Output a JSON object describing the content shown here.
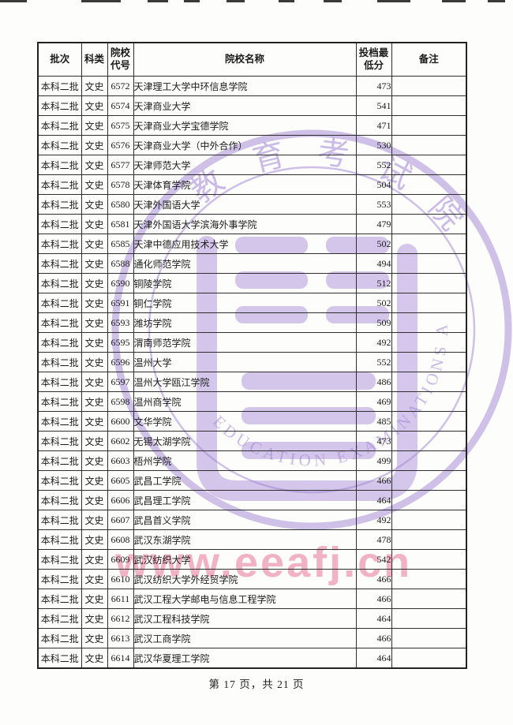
{
  "page": {
    "footer": "第 17 页，共 21 页"
  },
  "watermark": {
    "seal_top_chars": [
      "教",
      "育",
      "考",
      "试",
      "院"
    ],
    "seal_bottom_text": "EDUCATION EXAMINATIONS AUTHORITY",
    "url_text": "www.eeafj.cn",
    "seal_color": "#a184d6",
    "url_color": "#ee9ab5"
  },
  "table": {
    "headers": [
      "批次",
      "科类",
      "院校\n代号",
      "院校名称",
      "投档最\n低分",
      "备注"
    ],
    "column_names": [
      "batch",
      "subject-category",
      "college-code",
      "college-name",
      "min-admission-score",
      "remarks"
    ],
    "rows": [
      [
        "本科二批",
        "文史",
        "6572",
        "天津理工大学中环信息学院",
        "473",
        ""
      ],
      [
        "本科二批",
        "文史",
        "6574",
        "天津商业大学",
        "541",
        ""
      ],
      [
        "本科二批",
        "文史",
        "6575",
        "天津商业大学宝德学院",
        "471",
        ""
      ],
      [
        "本科二批",
        "文史",
        "6576",
        "天津商业大学（中外合作）",
        "530",
        ""
      ],
      [
        "本科二批",
        "文史",
        "6577",
        "天津师范大学",
        "552",
        ""
      ],
      [
        "本科二批",
        "文史",
        "6578",
        "天津体育学院",
        "504",
        ""
      ],
      [
        "本科二批",
        "文史",
        "6580",
        "天津外国语大学",
        "553",
        ""
      ],
      [
        "本科二批",
        "文史",
        "6581",
        "天津外国语大学滨海外事学院",
        "479",
        ""
      ],
      [
        "本科二批",
        "文史",
        "6585",
        "天津中德应用技术大学",
        "502",
        ""
      ],
      [
        "本科二批",
        "文史",
        "6588",
        "通化师范学院",
        "494",
        ""
      ],
      [
        "本科二批",
        "文史",
        "6590",
        "铜陵学院",
        "512",
        ""
      ],
      [
        "本科二批",
        "文史",
        "6591",
        "铜仁学院",
        "502",
        ""
      ],
      [
        "本科二批",
        "文史",
        "6593",
        "潍坊学院",
        "509",
        ""
      ],
      [
        "本科二批",
        "文史",
        "6595",
        "渭南师范学院",
        "492",
        ""
      ],
      [
        "本科二批",
        "文史",
        "6596",
        "温州大学",
        "552",
        ""
      ],
      [
        "本科二批",
        "文史",
        "6597",
        "温州大学瓯江学院",
        "486",
        ""
      ],
      [
        "本科二批",
        "文史",
        "6598",
        "温州商学院",
        "469",
        ""
      ],
      [
        "本科二批",
        "文史",
        "6600",
        "文华学院",
        "485",
        ""
      ],
      [
        "本科二批",
        "文史",
        "6602",
        "无锡太湖学院",
        "473",
        ""
      ],
      [
        "本科二批",
        "文史",
        "6603",
        "梧州学院",
        "499",
        ""
      ],
      [
        "本科二批",
        "文史",
        "6605",
        "武昌工学院",
        "466",
        ""
      ],
      [
        "本科二批",
        "文史",
        "6606",
        "武昌理工学院",
        "464",
        ""
      ],
      [
        "本科二批",
        "文史",
        "6607",
        "武昌首义学院",
        "492",
        ""
      ],
      [
        "本科二批",
        "文史",
        "6608",
        "武汉东湖学院",
        "478",
        ""
      ],
      [
        "本科二批",
        "文史",
        "6609",
        "武汉纺织大学",
        "542",
        ""
      ],
      [
        "本科二批",
        "文史",
        "6610",
        "武汉纺织大学外经贸学院",
        "466",
        ""
      ],
      [
        "本科二批",
        "文史",
        "6611",
        "武汉工程大学邮电与信息工程学院",
        "466",
        ""
      ],
      [
        "本科二批",
        "文史",
        "6612",
        "武汉工程科技学院",
        "464",
        ""
      ],
      [
        "本科二批",
        "文史",
        "6613",
        "武汉工商学院",
        "466",
        ""
      ],
      [
        "本科二批",
        "文史",
        "6614",
        "武汉华夏理工学院",
        "464",
        ""
      ]
    ]
  }
}
